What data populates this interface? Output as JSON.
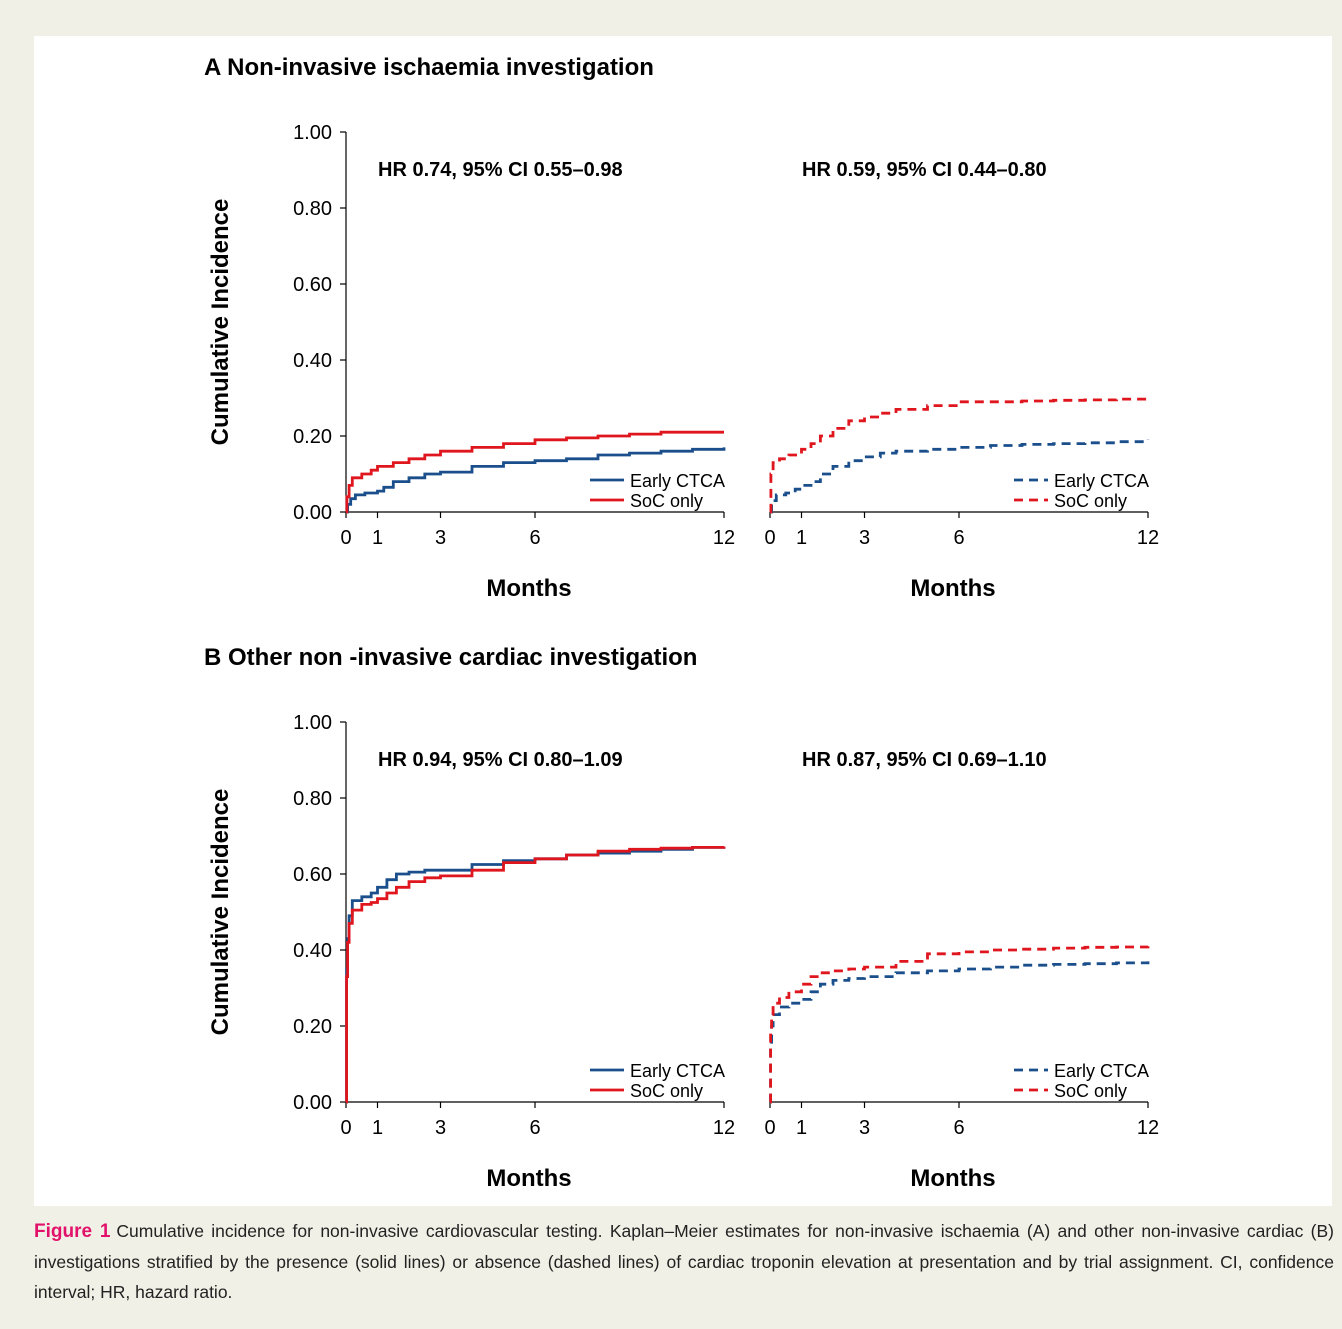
{
  "caption": {
    "label": "Figure 1",
    "text": "Cumulative incidence for non-invasive cardiovascular testing. Kaplan–Meier estimates for non-invasive ischaemia (A) and other non-invasive cardiac (B) investigations stratified by the presence (solid lines) or absence (dashed lines) of cardiac troponin elevation at presentation and by trial assignment. CI, confidence interval; HR, hazard ratio."
  },
  "panels": [
    {
      "heading": "A Non-invasive ischaemia investigation",
      "ylabel": "Cumulative Incidence"
    },
    {
      "heading": "B Other non -invasive cardiac investigation",
      "ylabel": "Cumulative Incidence"
    }
  ],
  "colors": {
    "early_ctca": "#1a4f8c",
    "soc_only": "#e0161e"
  },
  "chart_data": [
    {
      "type": "line",
      "xlabel": "Months",
      "ylabel": "Cumulative Incidence",
      "xticks": [
        0,
        1,
        3,
        6,
        12
      ],
      "yticks": [
        "0.00",
        "0.20",
        "0.40",
        "0.60",
        "0.80",
        "1.00"
      ],
      "xlim": [
        0,
        12
      ],
      "ylim": [
        0,
        1
      ],
      "annotation": "HR 0.74, 95% CI 0.55–0.98",
      "line_style": "solid",
      "legend": "bottom-right",
      "series": [
        {
          "name": "Early CTCA",
          "x": [
            0,
            0.05,
            0.15,
            0.3,
            0.6,
            1.0,
            1.2,
            1.5,
            2.0,
            2.5,
            3,
            4,
            5,
            6,
            7,
            8,
            9,
            10,
            11,
            12
          ],
          "y": [
            0,
            0.02,
            0.035,
            0.045,
            0.05,
            0.055,
            0.065,
            0.08,
            0.09,
            0.1,
            0.105,
            0.12,
            0.13,
            0.135,
            0.14,
            0.15,
            0.155,
            0.16,
            0.165,
            0.17
          ]
        },
        {
          "name": "SoC only",
          "x": [
            0,
            0.03,
            0.1,
            0.2,
            0.5,
            0.8,
            1.0,
            1.5,
            2.0,
            2.5,
            3,
            4,
            5,
            6,
            7,
            8,
            9,
            10,
            11,
            12
          ],
          "y": [
            0,
            0.04,
            0.07,
            0.09,
            0.1,
            0.11,
            0.12,
            0.13,
            0.14,
            0.15,
            0.16,
            0.17,
            0.18,
            0.19,
            0.195,
            0.2,
            0.205,
            0.21,
            0.21,
            0.21
          ]
        }
      ]
    },
    {
      "type": "line",
      "xlabel": "Months",
      "xticks": [
        0,
        1,
        3,
        6,
        12
      ],
      "ylim": [
        0,
        1
      ],
      "xlim": [
        0,
        12
      ],
      "annotation": "HR 0.59, 95% CI 0.44–0.80",
      "line_style": "dashed",
      "legend": "bottom-right",
      "series": [
        {
          "name": "Early CTCA",
          "x": [
            0,
            0.05,
            0.2,
            0.5,
            0.8,
            1.0,
            1.3,
            1.6,
            2.0,
            2.5,
            3,
            3.5,
            4,
            5,
            6,
            7,
            8,
            9,
            10,
            11,
            12
          ],
          "y": [
            0,
            0.03,
            0.045,
            0.05,
            0.06,
            0.07,
            0.08,
            0.1,
            0.12,
            0.135,
            0.145,
            0.155,
            0.16,
            0.165,
            0.17,
            0.175,
            0.178,
            0.18,
            0.182,
            0.185,
            0.19
          ]
        },
        {
          "name": "SoC only",
          "x": [
            0,
            0.03,
            0.1,
            0.3,
            0.6,
            1.0,
            1.3,
            1.6,
            2.0,
            2.5,
            3,
            3.5,
            4,
            5,
            6,
            7,
            8,
            9,
            10,
            11,
            12
          ],
          "y": [
            0,
            0.1,
            0.13,
            0.14,
            0.15,
            0.165,
            0.18,
            0.2,
            0.22,
            0.24,
            0.25,
            0.26,
            0.27,
            0.28,
            0.29,
            0.29,
            0.292,
            0.294,
            0.295,
            0.297,
            0.3
          ]
        }
      ]
    },
    {
      "type": "line",
      "xlabel": "Months",
      "ylabel": "Cumulative Incidence",
      "xticks": [
        0,
        1,
        3,
        6,
        12
      ],
      "yticks": [
        "0.00",
        "0.20",
        "0.40",
        "0.60",
        "0.80",
        "1.00"
      ],
      "xlim": [
        0,
        12
      ],
      "ylim": [
        0,
        1
      ],
      "annotation": "HR 0.94, 95% CI 0.80–1.09",
      "line_style": "solid",
      "legend": "bottom-right",
      "series": [
        {
          "name": "Early CTCA",
          "x": [
            0,
            0.02,
            0.05,
            0.1,
            0.2,
            0.5,
            0.8,
            1.0,
            1.3,
            1.6,
            2.0,
            2.5,
            3,
            4,
            5,
            6,
            7,
            8,
            9,
            10,
            11,
            12
          ],
          "y": [
            0,
            0.35,
            0.43,
            0.49,
            0.53,
            0.54,
            0.55,
            0.565,
            0.585,
            0.6,
            0.605,
            0.61,
            0.61,
            0.625,
            0.635,
            0.64,
            0.65,
            0.655,
            0.66,
            0.665,
            0.67,
            0.672
          ]
        },
        {
          "name": "SoC only",
          "x": [
            0,
            0.02,
            0.05,
            0.1,
            0.2,
            0.5,
            0.8,
            1.0,
            1.3,
            1.6,
            2.0,
            2.5,
            3,
            4,
            5,
            6,
            7,
            8,
            9,
            10,
            11,
            12
          ],
          "y": [
            0,
            0.33,
            0.42,
            0.47,
            0.505,
            0.52,
            0.525,
            0.535,
            0.55,
            0.565,
            0.58,
            0.59,
            0.595,
            0.61,
            0.63,
            0.64,
            0.65,
            0.66,
            0.665,
            0.668,
            0.67,
            0.672
          ]
        }
      ]
    },
    {
      "type": "line",
      "xlabel": "Months",
      "xticks": [
        0,
        1,
        3,
        6,
        12
      ],
      "ylim": [
        0,
        1
      ],
      "xlim": [
        0,
        12
      ],
      "annotation": "HR 0.87, 95% CI 0.69–1.10",
      "line_style": "dashed",
      "legend": "bottom-right",
      "series": [
        {
          "name": "Early CTCA",
          "x": [
            0,
            0.02,
            0.05,
            0.1,
            0.3,
            0.6,
            1.0,
            1.3,
            1.6,
            2.0,
            2.5,
            3,
            4,
            5,
            6,
            7,
            8,
            9,
            10,
            11,
            12
          ],
          "y": [
            0,
            0.15,
            0.2,
            0.23,
            0.25,
            0.26,
            0.27,
            0.29,
            0.31,
            0.32,
            0.325,
            0.33,
            0.34,
            0.345,
            0.35,
            0.355,
            0.36,
            0.362,
            0.364,
            0.366,
            0.37
          ]
        },
        {
          "name": "SoC only",
          "x": [
            0,
            0.02,
            0.05,
            0.1,
            0.3,
            0.6,
            1.0,
            1.3,
            1.6,
            2.0,
            2.5,
            3,
            4,
            5,
            6,
            7,
            8,
            9,
            10,
            11,
            12
          ],
          "y": [
            0,
            0.18,
            0.23,
            0.26,
            0.275,
            0.29,
            0.31,
            0.33,
            0.34,
            0.345,
            0.35,
            0.355,
            0.37,
            0.39,
            0.395,
            0.4,
            0.402,
            0.405,
            0.407,
            0.408,
            0.41
          ]
        }
      ]
    }
  ]
}
